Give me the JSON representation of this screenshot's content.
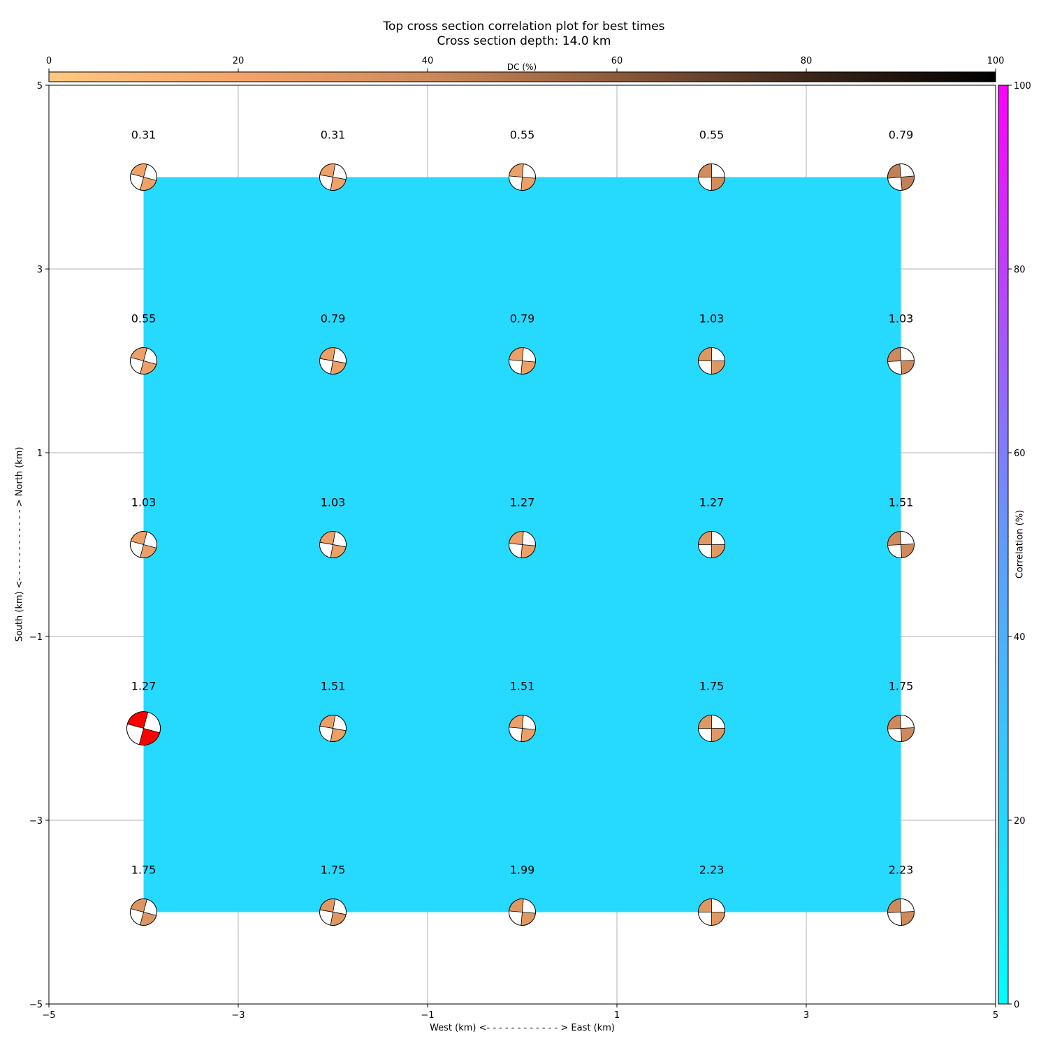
{
  "chart_data": {
    "type": "scatter",
    "title": "Top cross section correlation plot for best times",
    "subtitle": "Cross section depth: 14.0 km",
    "xlabel": "West (km) <- - - - - - - - - - - - > East (km)",
    "ylabel": "South (km) <- - - - - - - - - - - - > North (km)",
    "xlim": [
      -5,
      5
    ],
    "ylim": [
      -5,
      5
    ],
    "xticks": [
      "−5",
      "−3",
      "−1",
      "1",
      "3",
      "5"
    ],
    "yticks": [
      "−5",
      "−3",
      "−1",
      "1",
      "3",
      "5"
    ],
    "grid": true,
    "dc_colorbar": {
      "label": "DC (%)",
      "range": [
        0,
        100
      ],
      "ticks": [
        "0",
        "20",
        "40",
        "60",
        "80",
        "100"
      ],
      "colors": [
        "#ffc880",
        "#f2a56a",
        "#ce8a5c",
        "#8b5a3a",
        "#3c2619",
        "#000000"
      ],
      "placement": "top"
    },
    "correlation_colorbar": {
      "label": "Correlation (%)",
      "range": [
        0,
        100
      ],
      "ticks": [
        "0",
        "20",
        "40",
        "60",
        "80",
        "100"
      ],
      "colors": [
        "#00ffff",
        "#5f9cff",
        "#ff00ff"
      ],
      "placement": "right"
    },
    "correlation_field": {
      "x_range": [
        -4,
        4
      ],
      "y_range": [
        -4,
        4
      ],
      "value": 15,
      "color": "#26d9ff"
    },
    "best_marker_color": "#ff0000",
    "points": [
      {
        "x": -4,
        "y": 4,
        "time": "0.31",
        "dc": 22,
        "rot": 15
      },
      {
        "x": -2,
        "y": 4,
        "time": "0.31",
        "dc": 22,
        "rot": 10
      },
      {
        "x": 0,
        "y": 4,
        "time": "0.55",
        "dc": 24,
        "rot": 5
      },
      {
        "x": 2,
        "y": 4,
        "time": "0.55",
        "dc": 38,
        "rot": 0
      },
      {
        "x": 4,
        "y": 4,
        "time": "0.79",
        "dc": 44,
        "rot": -5
      },
      {
        "x": -4,
        "y": 2,
        "time": "0.55",
        "dc": 24,
        "rot": 15
      },
      {
        "x": -2,
        "y": 2,
        "time": "0.79",
        "dc": 24,
        "rot": 10
      },
      {
        "x": 0,
        "y": 2,
        "time": "0.79",
        "dc": 24,
        "rot": 5
      },
      {
        "x": 2,
        "y": 2,
        "time": "1.03",
        "dc": 30,
        "rot": 0
      },
      {
        "x": 4,
        "y": 2,
        "time": "1.03",
        "dc": 40,
        "rot": -3
      },
      {
        "x": -4,
        "y": 0,
        "time": "1.03",
        "dc": 24,
        "rot": 15
      },
      {
        "x": -2,
        "y": 0,
        "time": "1.03",
        "dc": 24,
        "rot": 10
      },
      {
        "x": 0,
        "y": 0,
        "time": "1.27",
        "dc": 24,
        "rot": 5
      },
      {
        "x": 2,
        "y": 0,
        "time": "1.27",
        "dc": 30,
        "rot": 0
      },
      {
        "x": 4,
        "y": 0,
        "time": "1.51",
        "dc": 40,
        "rot": -3
      },
      {
        "x": -4,
        "y": -2,
        "time": "1.27",
        "dc": 30,
        "rot": 15,
        "best": true
      },
      {
        "x": -2,
        "y": -2,
        "time": "1.51",
        "dc": 24,
        "rot": 10
      },
      {
        "x": 0,
        "y": -2,
        "time": "1.51",
        "dc": 24,
        "rot": 5
      },
      {
        "x": 2,
        "y": -2,
        "time": "1.75",
        "dc": 30,
        "rot": 0
      },
      {
        "x": 4,
        "y": -2,
        "time": "1.75",
        "dc": 40,
        "rot": -3
      },
      {
        "x": -4,
        "y": -4,
        "time": "1.75",
        "dc": 32,
        "rot": 15
      },
      {
        "x": -2,
        "y": -4,
        "time": "1.75",
        "dc": 30,
        "rot": 10
      },
      {
        "x": 0,
        "y": -4,
        "time": "1.99",
        "dc": 30,
        "rot": 5
      },
      {
        "x": 2,
        "y": -4,
        "time": "2.23",
        "dc": 30,
        "rot": 0
      },
      {
        "x": 4,
        "y": -4,
        "time": "2.23",
        "dc": 40,
        "rot": -3
      }
    ]
  }
}
